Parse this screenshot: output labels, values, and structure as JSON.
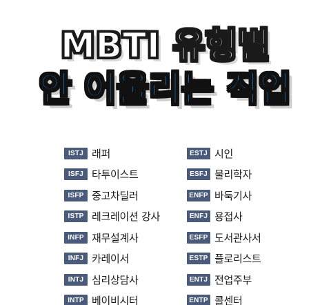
{
  "title": {
    "line1": "MBTI 유형별",
    "line2": "안 어울리는 직업"
  },
  "left_column": [
    {
      "type": "ISTJ",
      "job": "래퍼"
    },
    {
      "type": "ISFJ",
      "job": "타투이스트"
    },
    {
      "type": "ISFP",
      "job": "중고차딜러"
    },
    {
      "type": "ISTP",
      "job": "레크레이션 강사"
    },
    {
      "type": "INFP",
      "job": "재무설계사"
    },
    {
      "type": "INFJ",
      "job": "카레이서"
    },
    {
      "type": "INTJ",
      "job": "심리상담사"
    },
    {
      "type": "INTP",
      "job": "베이비시터"
    }
  ],
  "right_column": [
    {
      "type": "ESTJ",
      "job": "시인"
    },
    {
      "type": "ESFJ",
      "job": "물리학자"
    },
    {
      "type": "ENFP",
      "job": "바둑기사"
    },
    {
      "type": "ENFJ",
      "job": "용접사"
    },
    {
      "type": "ESFP",
      "job": "도서관사서"
    },
    {
      "type": "ESTP",
      "job": "플로리스트"
    },
    {
      "type": "ENTJ",
      "job": "전업주부"
    },
    {
      "type": "ENTP",
      "job": "콜센터"
    }
  ],
  "colors": {
    "badge_bg": "#4a5a7a",
    "title_blue": "#2196f3",
    "outline": "#111111"
  }
}
